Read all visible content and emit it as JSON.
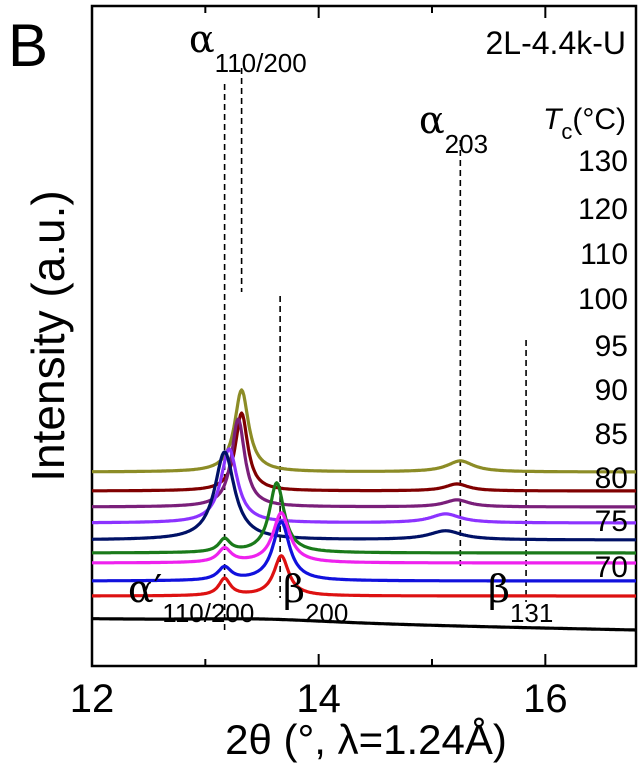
{
  "chart_data": {
    "type": "line",
    "panel_letter": "B",
    "sample": "2L-4.4k-U",
    "xlabel": "2θ (°, λ=1.24Å)",
    "ylabel": "Intensity (a.u.)",
    "xlim": [
      12,
      16.8
    ],
    "x_ticks": [
      12,
      14,
      16
    ],
    "x_tick_labels": [
      "12",
      "14",
      "16"
    ],
    "legend_title": {
      "main": "T",
      "sub": "c",
      "unit": "(°C)"
    },
    "series": [
      {
        "name": "130",
        "color": "#8c8c26",
        "baseline": 96,
        "peaks": [
          {
            "center": 13.32,
            "height": 82,
            "width": 0.085
          },
          {
            "center": 15.25,
            "height": 11,
            "width": 0.16
          }
        ]
      },
      {
        "name": "120",
        "color": "#800000",
        "baseline": 77,
        "peaks": [
          {
            "center": 13.32,
            "height": 78,
            "width": 0.075
          },
          {
            "center": 15.22,
            "height": 7,
            "width": 0.14
          }
        ]
      },
      {
        "name": "110",
        "color": "#7a1f7a",
        "baseline": 61,
        "peaks": [
          {
            "center": 13.29,
            "height": 88,
            "width": 0.08
          },
          {
            "center": 15.22,
            "height": 7,
            "width": 0.15
          }
        ]
      },
      {
        "name": "100",
        "color": "#8c33ff",
        "baseline": 45,
        "peaks": [
          {
            "center": 13.21,
            "height": 74,
            "width": 0.1
          },
          {
            "center": 15.12,
            "height": 9,
            "width": 0.18
          }
        ]
      },
      {
        "name": "95",
        "color": "#001166",
        "baseline": 28,
        "peaks": [
          {
            "center": 13.17,
            "height": 88,
            "width": 0.12
          },
          {
            "center": 15.12,
            "height": 9,
            "width": 0.2
          }
        ]
      },
      {
        "name": "90",
        "color": "#1a7a1a",
        "baseline": 15,
        "peaks": [
          {
            "center": 13.17,
            "height": 13,
            "width": 0.07
          },
          {
            "center": 13.63,
            "height": 70,
            "width": 0.09
          }
        ]
      },
      {
        "name": "85",
        "color": "#ee22ee",
        "baseline": 5,
        "peaks": [
          {
            "center": 13.17,
            "height": 14,
            "width": 0.08
          },
          {
            "center": 13.67,
            "height": 50,
            "width": 0.1
          }
        ]
      },
      {
        "name": "80",
        "color": "#1111dd",
        "baseline": -13,
        "peaks": [
          {
            "center": 13.17,
            "height": 13,
            "width": 0.08
          },
          {
            "center": 13.67,
            "height": 59,
            "width": 0.1
          }
        ]
      },
      {
        "name": "75",
        "color": "#dd1111",
        "baseline": -28,
        "peaks": [
          {
            "center": 13.17,
            "height": 17,
            "width": 0.07
          },
          {
            "center": 13.67,
            "height": 40,
            "width": 0.09
          }
        ]
      },
      {
        "name": "70",
        "color": "#000000",
        "baseline": -55,
        "peaks": [
          {
            "center": 13.5,
            "height": 4,
            "width": 1.0
          }
        ]
      }
    ],
    "reference_lines": [
      {
        "x": 13.17,
        "label_main": "α′",
        "label_sub": "110/200"
      },
      {
        "x": 13.32,
        "label_main": "α",
        "label_sub": "110/200"
      },
      {
        "x": 13.66,
        "label_main": "β",
        "label_sub": "200"
      },
      {
        "x": 15.25,
        "label_main": "α",
        "label_sub": "203"
      },
      {
        "x": 15.83,
        "label_main": "β",
        "label_sub": "131"
      }
    ]
  }
}
